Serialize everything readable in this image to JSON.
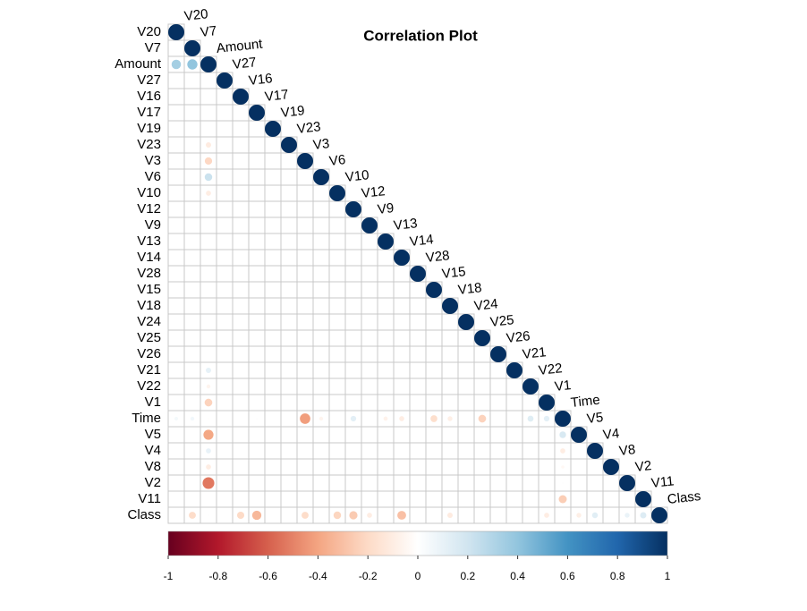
{
  "chart_data": {
    "type": "corrplot",
    "title": "Correlation Plot",
    "variables": [
      "V20",
      "V7",
      "Amount",
      "V27",
      "V16",
      "V17",
      "V19",
      "V23",
      "V3",
      "V6",
      "V10",
      "V12",
      "V9",
      "V13",
      "V14",
      "V28",
      "V15",
      "V18",
      "V24",
      "V25",
      "V26",
      "V21",
      "V22",
      "V1",
      "Time",
      "V5",
      "V4",
      "V8",
      "V2",
      "V11",
      "Class"
    ],
    "matrix": [
      [
        1
      ],
      [
        0,
        1
      ],
      [
        0.34,
        0.4,
        1
      ],
      [
        0,
        0,
        0,
        1
      ],
      [
        0,
        0,
        0,
        0,
        1
      ],
      [
        0,
        0,
        0,
        0,
        0,
        1
      ],
      [
        0,
        0,
        0,
        0,
        0,
        0,
        1
      ],
      [
        0,
        0,
        -0.11,
        0,
        0,
        0,
        0,
        1
      ],
      [
        0,
        0,
        -0.21,
        0,
        0,
        0,
        0,
        0,
        1
      ],
      [
        0,
        0,
        0.22,
        0,
        0,
        0,
        0,
        0,
        0,
        1
      ],
      [
        0,
        0,
        -0.1,
        0,
        0,
        0,
        0,
        0,
        0,
        0,
        1
      ],
      [
        0,
        0,
        0,
        0,
        0,
        0,
        0,
        0,
        0,
        0,
        0,
        1
      ],
      [
        0,
        0,
        0,
        0,
        0,
        0,
        0,
        0,
        0,
        0,
        0,
        0,
        1
      ],
      [
        0,
        0,
        0,
        0,
        0,
        0,
        0,
        0,
        0,
        0,
        0,
        0,
        0,
        1
      ],
      [
        0,
        0,
        0,
        0,
        0,
        0,
        0,
        0,
        0,
        0,
        0,
        0,
        0,
        0,
        1
      ],
      [
        0,
        0,
        0,
        0,
        0,
        0,
        0,
        0,
        0,
        0,
        0,
        0,
        0,
        0,
        0,
        1
      ],
      [
        0,
        0,
        0,
        0,
        0,
        0,
        0,
        0,
        0,
        0,
        0,
        0,
        0,
        0,
        0,
        0,
        1
      ],
      [
        0,
        0,
        0,
        0,
        0,
        0,
        0,
        0,
        0,
        0,
        0,
        0,
        0,
        0,
        0,
        0,
        0,
        1
      ],
      [
        0,
        0,
        0,
        0,
        0,
        0,
        0,
        0,
        0,
        0,
        0,
        0,
        0,
        0,
        0,
        0,
        0,
        0,
        1
      ],
      [
        0,
        0,
        0,
        0,
        0,
        0,
        0,
        0,
        0,
        0,
        0,
        0,
        0,
        0,
        0,
        0,
        0,
        0,
        0,
        1
      ],
      [
        0,
        0,
        0,
        0,
        0,
        0,
        0,
        0,
        0,
        0,
        0,
        0,
        0,
        0,
        0,
        0,
        0,
        0,
        0,
        0,
        1
      ],
      [
        0,
        0,
        0.11,
        0,
        0,
        0,
        0,
        0,
        0,
        0,
        0,
        0,
        0,
        0,
        0,
        0,
        0,
        0,
        0,
        0,
        0,
        1
      ],
      [
        0,
        0,
        -0.06,
        0,
        0,
        0,
        0,
        0,
        0,
        0,
        0,
        0,
        0,
        0,
        0,
        0,
        0,
        0,
        0,
        0,
        0,
        0,
        1
      ],
      [
        0,
        0,
        -0.23,
        0,
        0,
        0,
        0,
        0,
        0,
        0,
        0,
        0,
        0,
        0,
        0,
        0,
        0,
        0,
        0,
        0,
        0,
        0,
        0,
        1
      ],
      [
        0.05,
        0.06,
        -0.01,
        0,
        0,
        0.01,
        0,
        0,
        -0.42,
        -0.06,
        0,
        0.12,
        0,
        -0.07,
        -0.1,
        0,
        -0.18,
        -0.09,
        0,
        -0.23,
        0,
        0,
        0.14,
        0.12,
        1
      ],
      [
        0,
        0,
        -0.39,
        0,
        0,
        0,
        0,
        0,
        0,
        0,
        0,
        0,
        0,
        0,
        0,
        0,
        0,
        0,
        0,
        0,
        0,
        0,
        0,
        0,
        0.17,
        1
      ],
      [
        0,
        0,
        0.1,
        0,
        0,
        0,
        0,
        0,
        0,
        0,
        0,
        0,
        0,
        0,
        0,
        0,
        0,
        0,
        0,
        0,
        0,
        0,
        0,
        0,
        -0.1,
        0,
        1
      ],
      [
        0,
        0,
        -0.1,
        0,
        0,
        0,
        0,
        0,
        0,
        0,
        0,
        0,
        0,
        0,
        0,
        0,
        0,
        0,
        0,
        0,
        0,
        0,
        0,
        0,
        -0.04,
        0,
        0,
        1
      ],
      [
        0,
        0,
        -0.53,
        0,
        0,
        0,
        0,
        0,
        0,
        0,
        0,
        0,
        0,
        0,
        0,
        0,
        0,
        0,
        0,
        0,
        0,
        0,
        0,
        0,
        0.01,
        0,
        0,
        0,
        1
      ],
      [
        0,
        0,
        0,
        0,
        0,
        0,
        0,
        0,
        0,
        0,
        0,
        0,
        0,
        0,
        0,
        0,
        0,
        0,
        0,
        0,
        0,
        0,
        0,
        0,
        -0.25,
        0,
        0,
        0,
        0,
        1
      ],
      [
        0,
        -0.19,
        0.01,
        0,
        -0.2,
        -0.33,
        0,
        0,
        -0.19,
        0,
        -0.22,
        -0.26,
        -0.1,
        0,
        -0.3,
        0,
        0,
        -0.11,
        0,
        0,
        0,
        0,
        0,
        -0.1,
        0,
        -0.09,
        0.13,
        0,
        0.09,
        0.15,
        1
      ]
    ],
    "clim": [
      -1,
      1
    ],
    "ticks": [
      -1,
      -0.8,
      -0.6,
      -0.4,
      -0.2,
      0,
      0.2,
      0.4,
      0.6,
      0.8,
      1
    ],
    "colormap": [
      "#67001F",
      "#B2182B",
      "#D6604D",
      "#F4A582",
      "#FDDBC7",
      "#FFFFFF",
      "#D1E5F0",
      "#92C5DE",
      "#4393C3",
      "#2166AC",
      "#053061"
    ]
  }
}
